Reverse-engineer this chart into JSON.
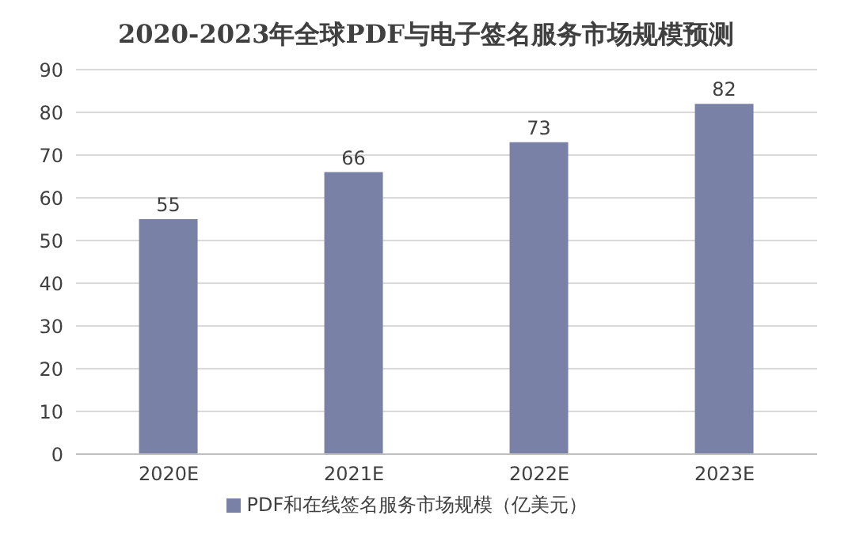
{
  "chart_data": {
    "type": "bar",
    "title": "2020-2023年全球PDF与电子签名服务市场规模预测",
    "categories": [
      "2020E",
      "2021E",
      "2022E",
      "2023E"
    ],
    "series": [
      {
        "name": "PDF和在线签名服务市场规模（亿美元）",
        "color": "#7a81a6",
        "values": [
          55,
          66,
          73,
          82
        ]
      }
    ],
    "ylim": [
      0,
      90
    ],
    "yticks": [
      0,
      10,
      20,
      30,
      40,
      50,
      60,
      70,
      80,
      90
    ],
    "grid": "y",
    "legend": "bottom",
    "data_labels": true
  }
}
